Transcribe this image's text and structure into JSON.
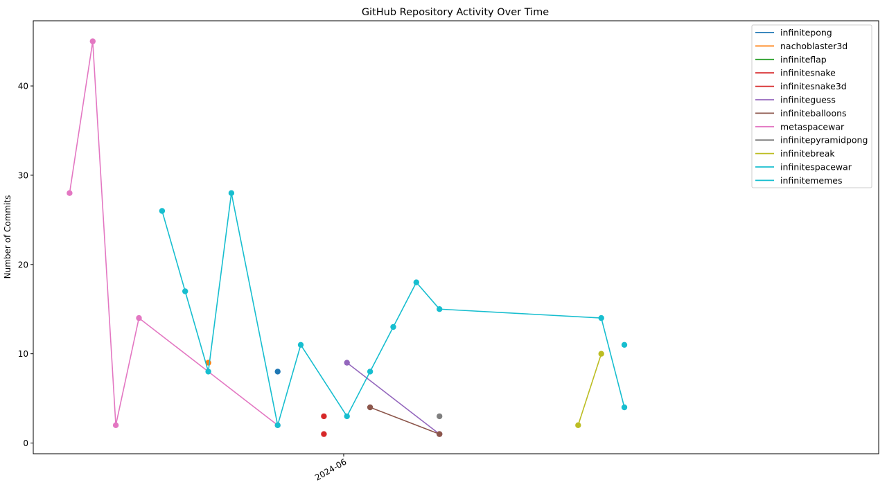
{
  "chart_data": {
    "type": "line",
    "title": "GitHub Repository Activity Over Time",
    "xlabel": "",
    "ylabel": "Number of Commits",
    "x_unit": "week",
    "x_tick_labels": [
      {
        "x": "2024-06",
        "label": "2024-06"
      }
    ],
    "y_ticks": [
      0,
      10,
      20,
      30,
      40
    ],
    "xlim": [
      "2024-02-28",
      "2024-11-10"
    ],
    "ylim": [
      -1.2,
      47.3
    ],
    "grid": false,
    "legend_position": "top-right",
    "series": [
      {
        "name": "infinitepong",
        "color": "#1f77b4",
        "points": [
          {
            "x": "2024-05-12",
            "y": 8
          }
        ]
      },
      {
        "name": "nachoblaster3d",
        "color": "#ff7f0e",
        "points": [
          {
            "x": "2024-04-21",
            "y": 9
          }
        ]
      },
      {
        "name": "infiniteflap",
        "color": "#2ca02c",
        "points": []
      },
      {
        "name": "infinitesnake",
        "color": "#d62728",
        "points": [
          {
            "x": "2024-05-26",
            "y": 3
          }
        ]
      },
      {
        "name": "infinitesnake3d",
        "color": "#d62728",
        "points": [
          {
            "x": "2024-05-26",
            "y": 1
          }
        ]
      },
      {
        "name": "infiniteguess",
        "color": "#9467bd",
        "points": [
          {
            "x": "2024-06-02",
            "y": 9
          },
          {
            "x": "2024-06-30",
            "y": 1
          }
        ]
      },
      {
        "name": "infiniteballoons",
        "color": "#8c564b",
        "points": [
          {
            "x": "2024-06-09",
            "y": 4
          },
          {
            "x": "2024-06-30",
            "y": 1
          }
        ]
      },
      {
        "name": "metaspacewar",
        "color": "#e377c2",
        "points": [
          {
            "x": "2024-03-10",
            "y": 28
          },
          {
            "x": "2024-03-17",
            "y": 45
          },
          {
            "x": "2024-03-24",
            "y": 2
          },
          {
            "x": "2024-03-31",
            "y": 14
          },
          {
            "x": "2024-05-12",
            "y": 2
          }
        ]
      },
      {
        "name": "infinitepyramidpong",
        "color": "#7f7f7f",
        "points": [
          {
            "x": "2024-06-30",
            "y": 3
          }
        ]
      },
      {
        "name": "infinitebreak",
        "color": "#bcbd22",
        "points": [
          {
            "x": "2024-08-11",
            "y": 2
          },
          {
            "x": "2024-08-18",
            "y": 10
          }
        ]
      },
      {
        "name": "infinitespacewar",
        "color": "#17becf",
        "points": [
          {
            "x": "2024-08-25",
            "y": 11
          }
        ]
      },
      {
        "name": "infinitememes",
        "color": "#17becf",
        "points": [
          {
            "x": "2024-04-07",
            "y": 26
          },
          {
            "x": "2024-04-14",
            "y": 17
          },
          {
            "x": "2024-04-21",
            "y": 8
          },
          {
            "x": "2024-04-28",
            "y": 28
          },
          {
            "x": "2024-05-12",
            "y": 2
          },
          {
            "x": "2024-05-19",
            "y": 11
          },
          {
            "x": "2024-06-02",
            "y": 3
          },
          {
            "x": "2024-06-09",
            "y": 8
          },
          {
            "x": "2024-06-16",
            "y": 13
          },
          {
            "x": "2024-06-23",
            "y": 18
          },
          {
            "x": "2024-06-30",
            "y": 15
          },
          {
            "x": "2024-08-18",
            "y": 14
          },
          {
            "x": "2024-08-25",
            "y": 4
          }
        ]
      }
    ]
  }
}
